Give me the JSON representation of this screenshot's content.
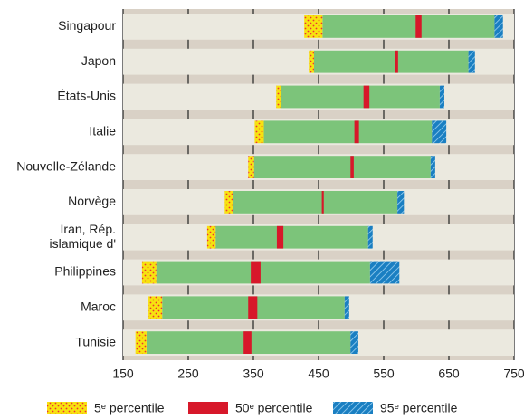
{
  "chart_data": {
    "type": "floating_bar",
    "categories": [
      "Singapour",
      "Japon",
      "États-Unis",
      "Italie",
      "Nouvelle-Zélande",
      "Norvège",
      [
        "Iran, Rép.",
        "islamique d'"
      ],
      "Philippines",
      "Maroc",
      "Tunisie"
    ],
    "series": [
      {
        "name": "5ᵉ percentile",
        "color": "#f7e210",
        "values": [
          [
            428,
            456
          ],
          [
            435,
            443
          ],
          [
            385,
            392
          ],
          [
            352,
            366
          ],
          [
            342,
            351
          ],
          [
            306,
            318
          ],
          [
            279,
            292
          ],
          [
            179,
            201
          ],
          [
            189,
            210
          ],
          [
            169,
            186
          ]
        ]
      },
      {
        "name": "50ᵉ percentile",
        "color": "#d7182a",
        "values": [
          [
            599,
            608
          ],
          [
            567,
            572
          ],
          [
            519,
            528
          ],
          [
            505,
            512
          ],
          [
            499,
            504
          ],
          [
            455,
            458
          ],
          [
            386,
            396
          ],
          [
            346,
            361
          ],
          [
            342,
            356
          ],
          [
            335,
            347
          ]
        ]
      },
      {
        "name": "95ᵉ percentile",
        "color": "#1a7fc2",
        "values": [
          [
            720,
            733
          ],
          [
            680,
            690
          ],
          [
            636,
            643
          ],
          [
            624,
            646
          ],
          [
            622,
            629
          ],
          [
            571,
            581
          ],
          [
            526,
            533
          ],
          [
            529,
            574
          ],
          [
            490,
            497
          ],
          [
            499,
            511
          ]
        ]
      }
    ],
    "range_color": "#7cc47a",
    "xlim": [
      150,
      750
    ],
    "xticks": [
      150,
      250,
      350,
      450,
      550,
      650,
      750
    ],
    "grid": true
  }
}
